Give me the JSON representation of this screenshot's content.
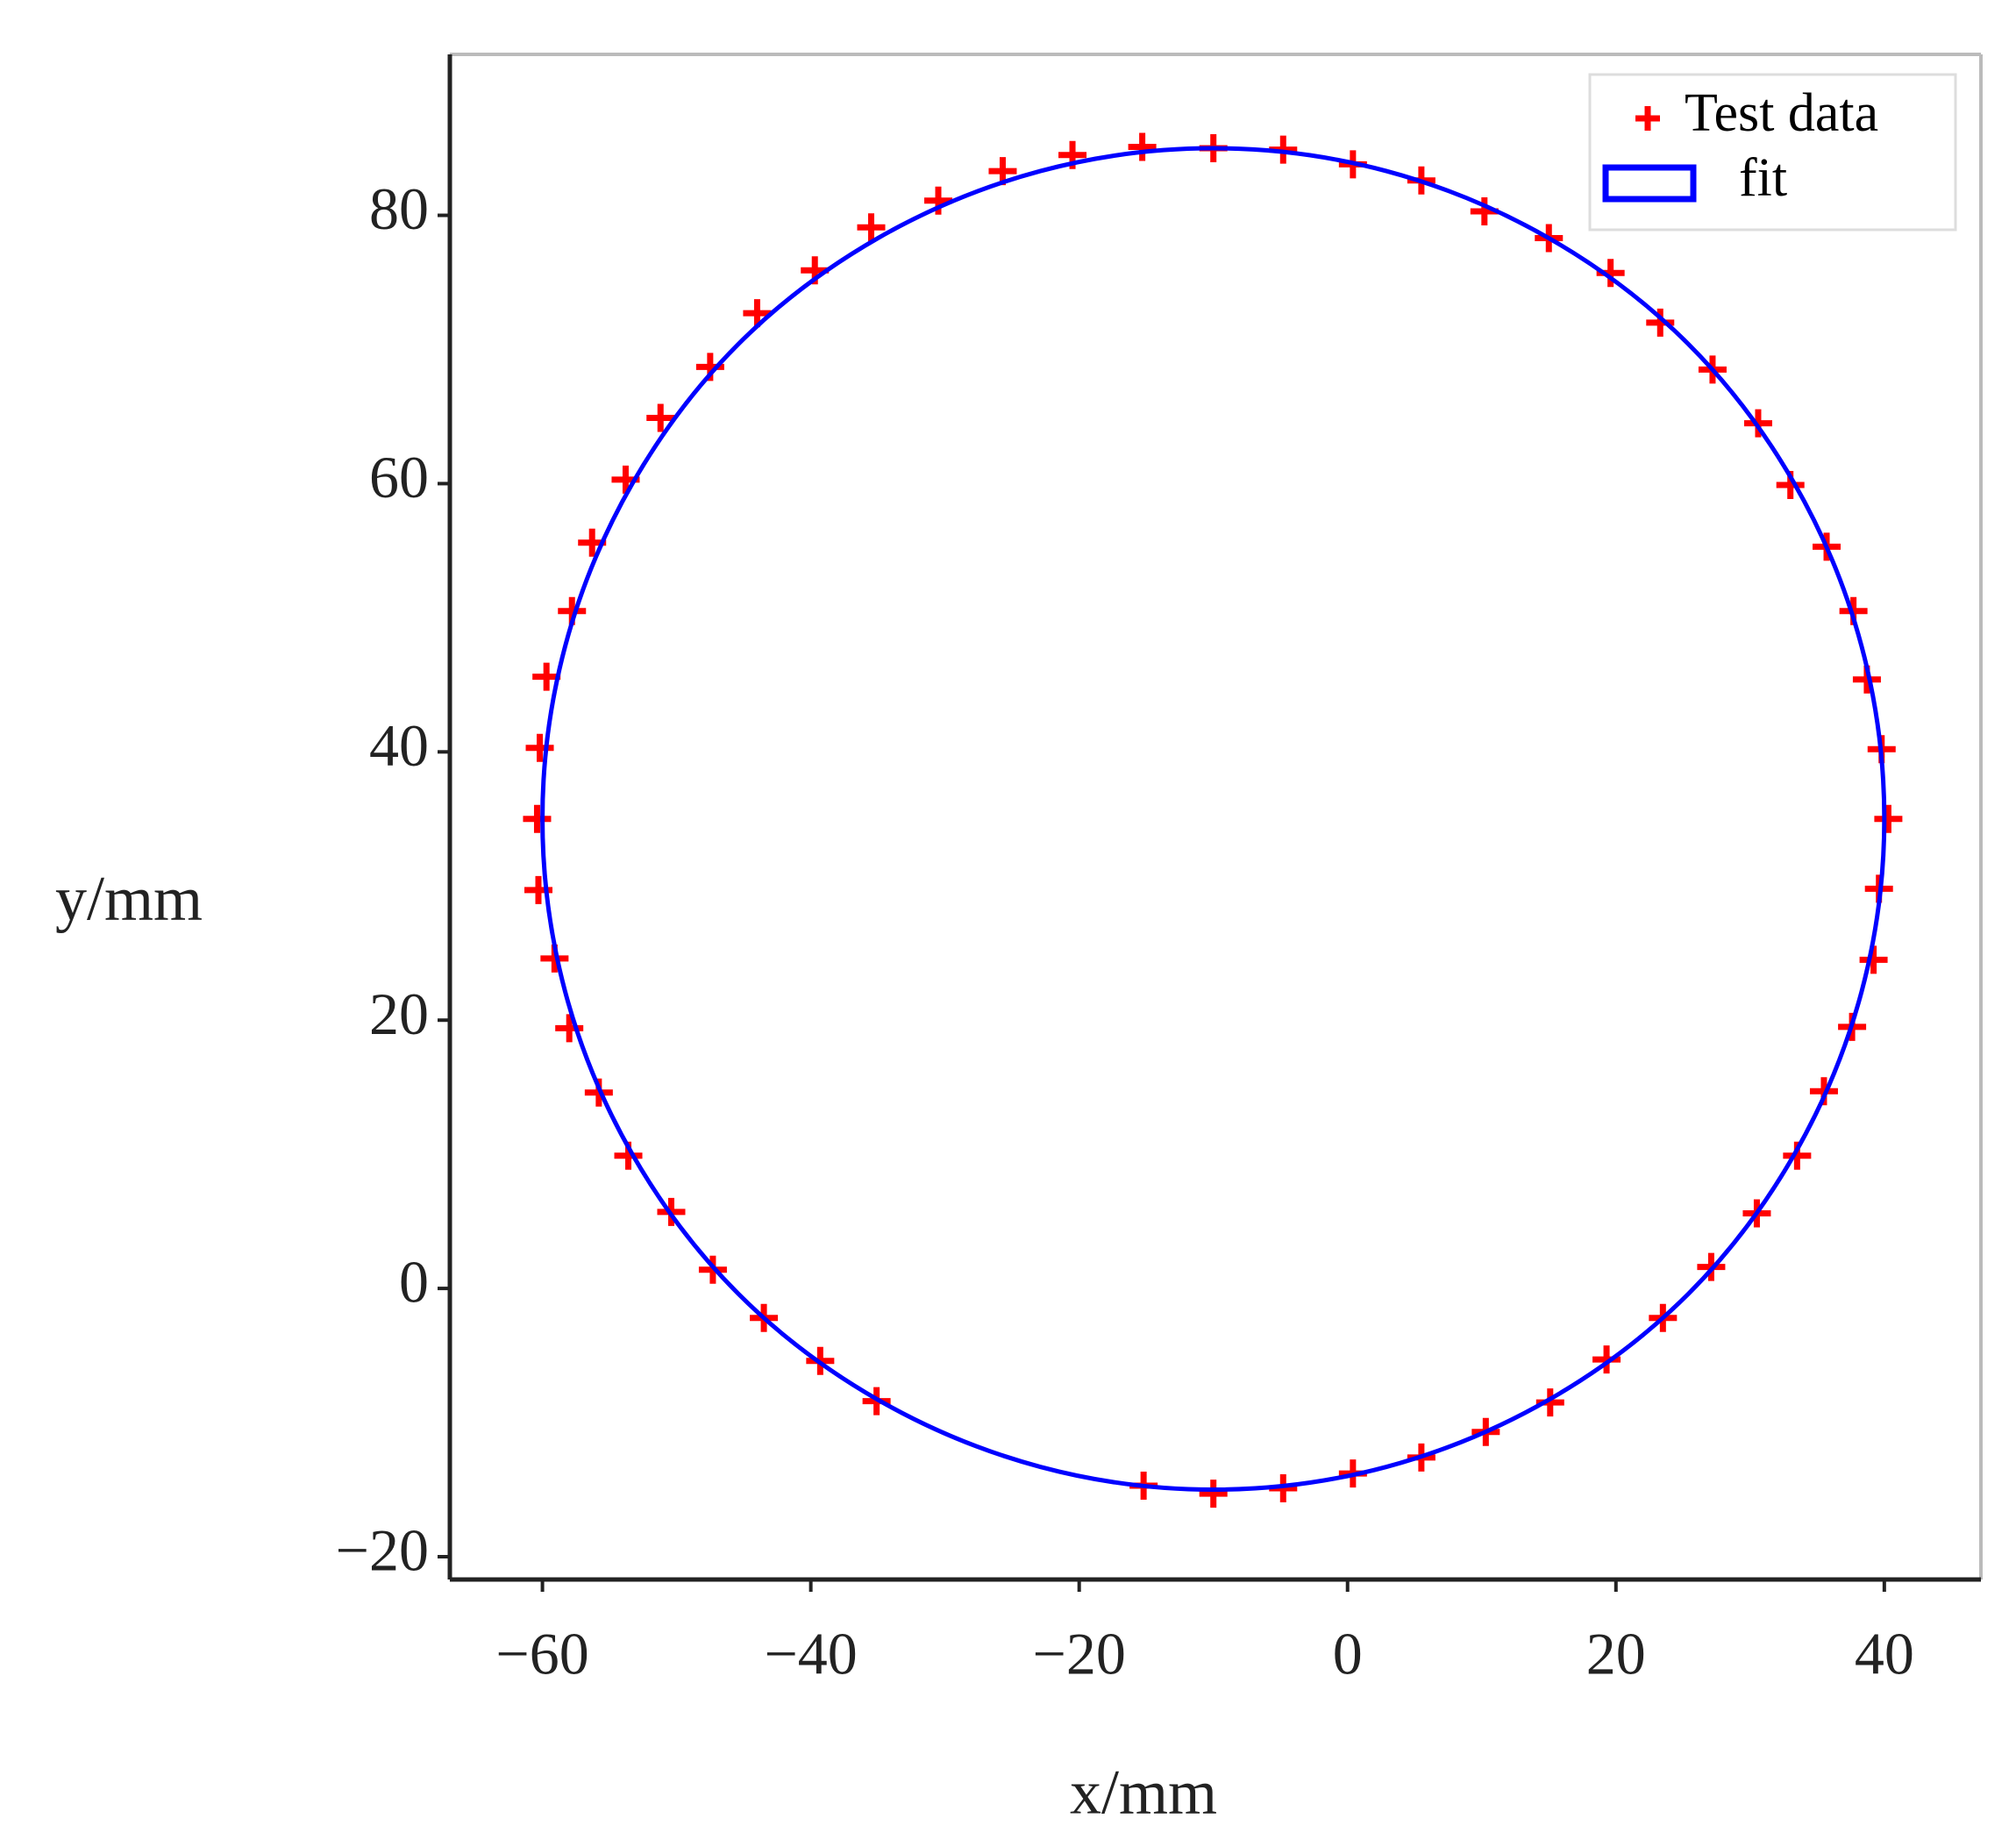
{
  "chart_data": {
    "type": "scatter",
    "x_label": "x/mm",
    "y_label": "y/mm",
    "xlim": [
      -66.9,
      47.2
    ],
    "ylim": [
      -21.7,
      92.0
    ],
    "xticks": [
      {
        "value": -60,
        "label": "−60"
      },
      {
        "value": -40,
        "label": "−40"
      },
      {
        "value": -20,
        "label": "−20"
      },
      0,
      20,
      40
    ],
    "yticks": [
      {
        "value": -20,
        "label": "−20"
      },
      0,
      20,
      40,
      60,
      80
    ],
    "legend": "upper right",
    "series": [
      {
        "name": "Test data",
        "color": "#ff0000",
        "kind": "scatter",
        "x": [
          40.3,
          39.8,
          38.7,
          37.7,
          35.7,
          33.0,
          30.6,
          27.2,
          23.3,
          19.6,
          15.0,
          10.2,
          5.5,
          0.4,
          -4.8,
          -10,
          -15.3,
          -20.5,
          -25.7,
          -30.5,
          -35.5,
          -39.7,
          -44.0,
          -47.5,
          -51.2,
          -53.8,
          -56.3,
          -57.8,
          -59.7,
          -60.2,
          -60.4,
          -60.3,
          -59.1,
          -58.0,
          -55.8,
          -53.6,
          -50.4,
          -47.3,
          -43.5,
          -39.3,
          -35.1,
          -15.2,
          -10,
          -4.8,
          0.4,
          5.5,
          10.3,
          15.1,
          19.3,
          23.5,
          27.1,
          30.5,
          33.5,
          35.5,
          37.6,
          39.2,
          39.6
        ],
        "values": [
          35.0,
          40.2,
          45.4,
          50.5,
          55.3,
          59.9,
          64.5,
          68.5,
          72.0,
          75.7,
          78.3,
          80.3,
          82.6,
          83.8,
          84.9,
          85.0,
          85.1,
          84.5,
          83.3,
          81.1,
          79.1,
          75.9,
          72.7,
          68.7,
          64.9,
          60.3,
          55.6,
          50.5,
          45.6,
          40.3,
          35.0,
          29.7,
          24.6,
          19.4,
          14.6,
          9.9,
          5.7,
          1.4,
          -2.2,
          -5.4,
          -8.4,
          -14.7,
          -15.3,
          -14.9,
          -13.8,
          -12.6,
          -10.7,
          -8.5,
          -5.3,
          -2.2,
          1.6,
          5.6,
          9.9,
          14.7,
          19.5,
          24.5,
          29.8
        ]
      },
      {
        "name": "fit",
        "color": "#0000ff",
        "kind": "line",
        "x": [
          40,
          38.3,
          33.3,
          25.4,
          15.0,
          2.9,
          -10,
          -22.9,
          -35.0,
          -45.4,
          -53.3,
          -58.3,
          -60,
          -58.3,
          -53.3,
          -45.4,
          -35.0,
          -22.9,
          -10,
          2.9,
          15.0,
          25.4,
          33.3,
          38.3,
          40
        ],
        "values": [
          35,
          47.9,
          60.0,
          70.4,
          78.3,
          83.3,
          85,
          83.3,
          78.3,
          70.4,
          60.0,
          47.9,
          35,
          22.1,
          10.0,
          -0.4,
          -8.3,
          -13.3,
          -15,
          -13.3,
          -8.3,
          -0.4,
          10.0,
          22.1,
          35
        ]
      }
    ]
  }
}
